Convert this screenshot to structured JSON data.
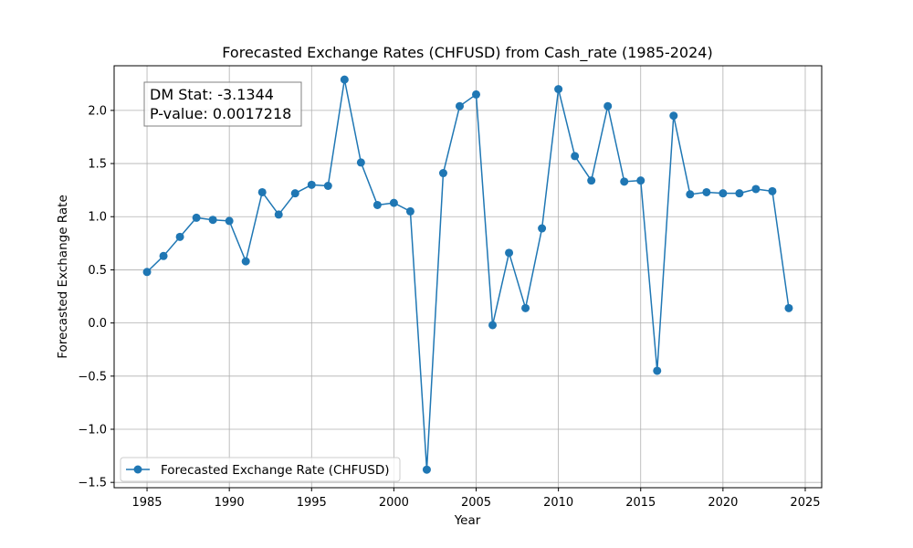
{
  "chart_data": {
    "type": "line",
    "title": "Forecasted Exchange Rates (CHFUSD) from Cash_rate (1985-2024)",
    "xlabel": "Year",
    "ylabel": "Forecasted Exchange Rate",
    "xlim": [
      1983,
      2026
    ],
    "ylim": [
      -1.55,
      2.42
    ],
    "xticks": [
      1985,
      1990,
      1995,
      2000,
      2005,
      2010,
      2015,
      2020,
      2025
    ],
    "yticks": [
      -1.5,
      -1.0,
      -0.5,
      0.0,
      0.5,
      1.0,
      1.5,
      2.0
    ],
    "ytick_labels": [
      "−1.5",
      "−1.0",
      "−0.5",
      "0.0",
      "0.5",
      "1.0",
      "1.5",
      "2.0"
    ],
    "grid": true,
    "legend_position": "lower-left",
    "annotation": {
      "dm_stat": "DM Stat: -3.1344",
      "p_value": "P-value: 0.0017218",
      "position": "upper-left"
    },
    "series": [
      {
        "name": "Forecasted Exchange Rate (CHFUSD)",
        "color": "#1f77b4",
        "marker": "circle",
        "x": [
          1985,
          1986,
          1987,
          1988,
          1989,
          1990,
          1991,
          1992,
          1993,
          1994,
          1995,
          1996,
          1997,
          1998,
          1999,
          2000,
          2001,
          2002,
          2003,
          2004,
          2005,
          2006,
          2007,
          2008,
          2009,
          2010,
          2011,
          2012,
          2013,
          2014,
          2015,
          2016,
          2017,
          2018,
          2019,
          2020,
          2021,
          2022,
          2023,
          2024
        ],
        "y": [
          0.48,
          0.63,
          0.81,
          0.99,
          0.97,
          0.96,
          0.58,
          1.23,
          1.02,
          1.22,
          1.3,
          1.29,
          2.29,
          1.51,
          1.11,
          1.13,
          1.05,
          -1.38,
          1.41,
          2.04,
          2.15,
          -0.02,
          0.66,
          0.14,
          0.89,
          2.2,
          1.57,
          1.34,
          2.04,
          1.33,
          1.34,
          -0.45,
          1.95,
          1.21,
          1.23,
          1.22,
          1.22,
          1.26,
          1.24,
          0.14
        ]
      }
    ]
  }
}
